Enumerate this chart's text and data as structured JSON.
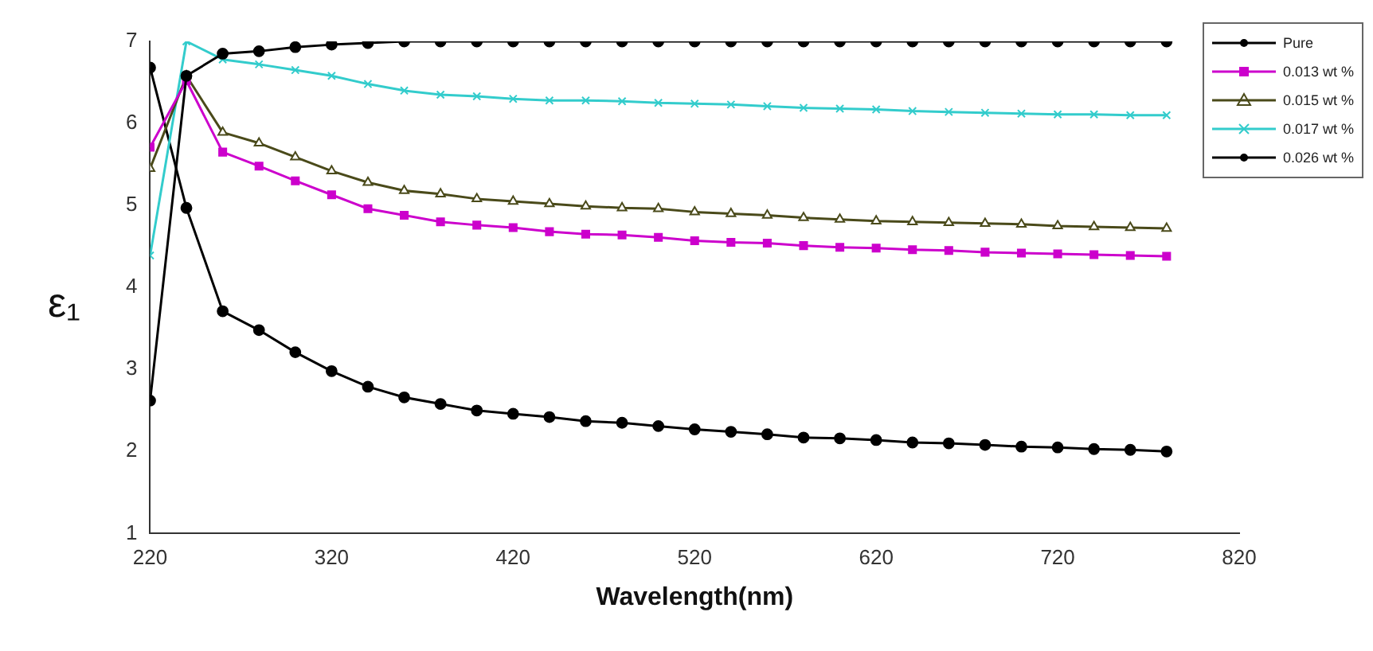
{
  "chart_data": {
    "type": "line",
    "xlabel": "Wavelength(nm)",
    "ylabel": "ε₁",
    "xlim": [
      220,
      820
    ],
    "ylim": [
      1,
      7
    ],
    "xticks": [
      220,
      320,
      420,
      520,
      620,
      720,
      820
    ],
    "yticks": [
      1,
      2,
      3,
      4,
      5,
      6,
      7
    ],
    "grid": false,
    "legend": "top right",
    "line_style": "solid",
    "x": [
      220,
      240,
      260,
      280,
      300,
      320,
      340,
      360,
      380,
      400,
      420,
      440,
      460,
      480,
      500,
      520,
      540,
      560,
      580,
      600,
      620,
      640,
      660,
      680,
      700,
      720,
      740,
      760,
      780
    ],
    "series": [
      {
        "name": "Pure",
        "color": "#000000",
        "marker": "circle",
        "values": [
          2.62,
          6.58,
          6.85,
          6.88,
          6.93,
          6.96,
          6.98,
          7.0,
          7.0,
          7.0,
          7.0,
          7.0,
          7.0,
          7.0,
          7.0,
          7.0,
          7.0,
          7.0,
          7.0,
          7.0,
          7.0,
          7.0,
          7.0,
          7.0,
          7.0,
          7.0,
          7.0,
          7.0,
          7.0
        ]
      },
      {
        "name": "0.013 wt %",
        "color": "#cc00cc",
        "marker": "square",
        "values": [
          5.71,
          6.52,
          5.65,
          5.48,
          5.3,
          5.13,
          4.96,
          4.88,
          4.8,
          4.76,
          4.73,
          4.68,
          4.65,
          4.64,
          4.61,
          4.57,
          4.55,
          4.54,
          4.51,
          4.49,
          4.48,
          4.46,
          4.45,
          4.43,
          4.42,
          4.41,
          4.4,
          4.39,
          4.38
        ]
      },
      {
        "name": "0.015 wt %",
        "color": "#4a4a1a",
        "marker": "triangle",
        "values": [
          5.45,
          6.58,
          5.89,
          5.76,
          5.59,
          5.42,
          5.28,
          5.18,
          5.14,
          5.08,
          5.05,
          5.02,
          4.99,
          4.97,
          4.96,
          4.92,
          4.9,
          4.88,
          4.85,
          4.83,
          4.81,
          4.8,
          4.79,
          4.78,
          4.77,
          4.75,
          4.74,
          4.73,
          4.72
        ]
      },
      {
        "name": "0.017 wt %",
        "color": "#33cccc",
        "marker": "cross",
        "values": [
          4.39,
          7.0,
          6.78,
          6.72,
          6.65,
          6.58,
          6.48,
          6.4,
          6.35,
          6.33,
          6.3,
          6.28,
          6.28,
          6.27,
          6.25,
          6.24,
          6.23,
          6.21,
          6.19,
          6.18,
          6.17,
          6.15,
          6.14,
          6.13,
          6.12,
          6.11,
          6.11,
          6.1,
          6.1
        ]
      },
      {
        "name": "0.026 wt %",
        "color": "#000000",
        "marker": "circle",
        "values": [
          6.68,
          4.97,
          3.71,
          3.48,
          3.21,
          2.98,
          2.79,
          2.66,
          2.58,
          2.5,
          2.46,
          2.42,
          2.37,
          2.35,
          2.31,
          2.27,
          2.24,
          2.21,
          2.17,
          2.16,
          2.14,
          2.11,
          2.1,
          2.08,
          2.06,
          2.05,
          2.03,
          2.02,
          2.0
        ]
      }
    ]
  }
}
